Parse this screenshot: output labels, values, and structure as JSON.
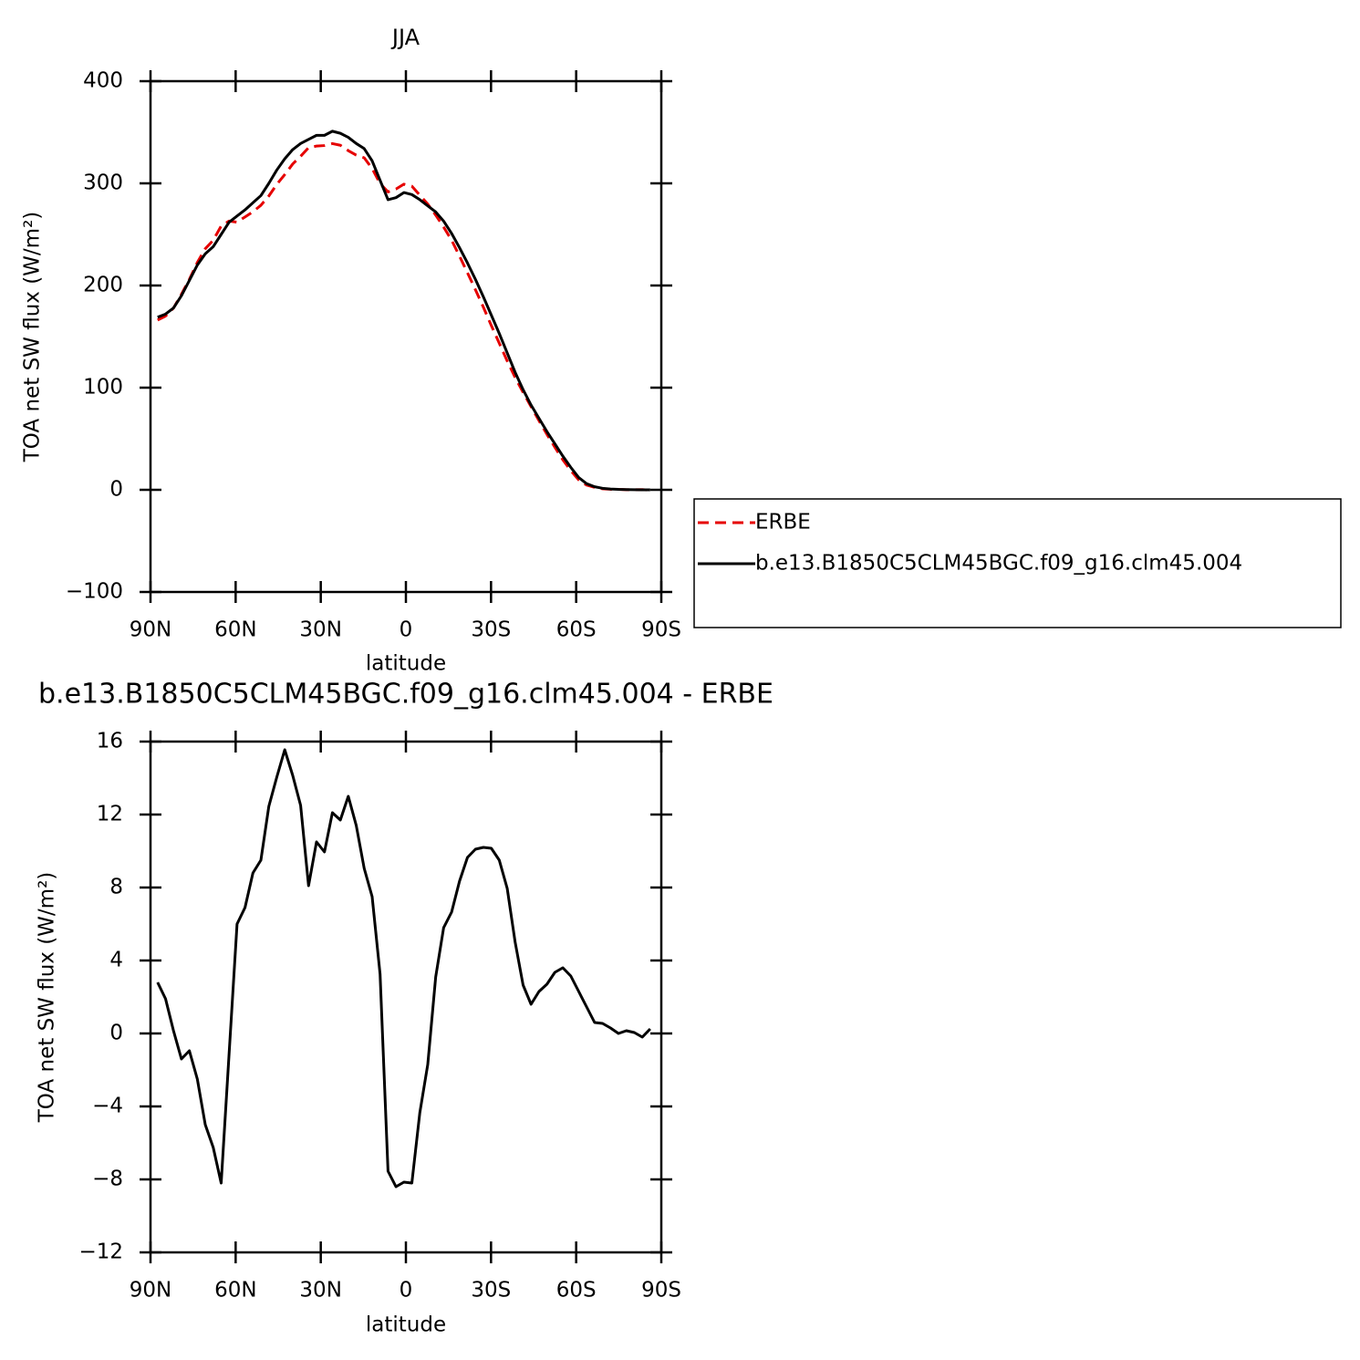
{
  "chart_data": [
    {
      "type": "line",
      "title": "JJA",
      "xlabel": "latitude",
      "ylabel": "TOA net SW flux (W/m²)",
      "x": [
        87.5,
        84.7,
        81.9,
        79.1,
        76.3,
        73.5,
        70.7,
        67.9,
        65.1,
        62.3,
        59.5,
        56.7,
        53.9,
        51.1,
        48.3,
        45.5,
        42.7,
        39.9,
        37.1,
        34.3,
        31.5,
        28.7,
        25.9,
        23.1,
        20.3,
        17.5,
        14.7,
        11.9,
        9.1,
        6.3,
        3.5,
        0.7,
        -2.1,
        -4.9,
        -7.7,
        -10.5,
        -13.3,
        -16.1,
        -18.9,
        -21.7,
        -24.5,
        -27.3,
        -30.1,
        -32.9,
        -35.7,
        -38.5,
        -41.3,
        -44.1,
        -46.9,
        -49.7,
        -52.5,
        -55.3,
        -58.1,
        -60.9,
        -63.7,
        -66.5,
        -69.3,
        -72.1,
        -74.9,
        -77.7,
        -80.5,
        -83.3,
        -86.1
      ],
      "series": [
        {
          "name": "ERBE",
          "color": "#e60000",
          "linestyle": "dashed",
          "values": [
            166.2,
            170.1,
            177.9,
            191.4,
            206,
            222.5,
            236,
            244.3,
            258.2,
            263.1,
            262,
            267.1,
            272.2,
            278.5,
            287.6,
            299,
            308.5,
            318.9,
            326.5,
            334.9,
            336.5,
            337,
            338.9,
            337.3,
            332,
            327.6,
            325,
            314.5,
            299.8,
            291.6,
            294.4,
            299.2,
            297.2,
            288.4,
            279.7,
            268.9,
            257.2,
            244.4,
            228.7,
            212.4,
            195.9,
            178.8,
            160.8,
            143.5,
            126.1,
            110,
            95.4,
            81.4,
            67.7,
            54.3,
            41.7,
            29.4,
            18.9,
            9.7,
            4.6,
            2.4,
            1,
            0.5,
            0.4,
            0.1,
            0.1,
            0.2,
            -0.3
          ]
        },
        {
          "name": "b.e13.B1850C5CLM45BGC.f09_g16.clm45.004",
          "color": "#000000",
          "linestyle": "solid",
          "values": [
            169,
            172,
            178,
            190,
            205,
            220,
            231,
            238,
            250,
            262,
            268,
            274,
            281,
            288,
            300,
            313,
            324,
            333,
            339,
            343,
            347,
            347,
            351,
            349,
            345,
            339,
            334,
            322,
            303,
            284,
            286,
            291,
            289,
            284,
            278,
            272,
            263,
            251,
            237,
            222,
            206,
            189,
            171,
            153,
            134,
            115,
            98,
            83,
            70,
            57,
            45,
            33,
            22,
            12,
            6,
            3,
            1.5,
            0.8,
            0.4,
            0.2,
            0.1,
            0,
            0
          ]
        }
      ],
      "xlim": [
        90,
        -90
      ],
      "xticks": [
        {
          "value": 90,
          "label": "90N"
        },
        {
          "value": 60,
          "label": "60N"
        },
        {
          "value": 30,
          "label": "30N"
        },
        0,
        {
          "value": -30,
          "label": "30S"
        },
        {
          "value": -60,
          "label": "60S"
        },
        {
          "value": -90,
          "label": "90S"
        }
      ],
      "ylim": [
        -100,
        400
      ],
      "yticks": [
        {
          "value": -100,
          "label": "−100"
        },
        0,
        100,
        200,
        300,
        400
      ],
      "legend": "right"
    },
    {
      "type": "line",
      "title": "b.e13.B1850C5CLM45BGC.f09_g16.clm45.004 - ERBE",
      "xlabel": "latitude",
      "ylabel": "TOA net SW flux (W/m²)",
      "x": [
        87.5,
        84.7,
        81.9,
        79.1,
        76.3,
        73.5,
        70.7,
        67.9,
        65.1,
        62.3,
        59.5,
        56.7,
        53.9,
        51.1,
        48.3,
        45.5,
        42.7,
        39.9,
        37.1,
        34.3,
        31.5,
        28.7,
        25.9,
        23.1,
        20.3,
        17.5,
        14.7,
        11.9,
        9.1,
        6.3,
        3.5,
        0.7,
        -2.1,
        -4.9,
        -7.7,
        -10.5,
        -13.3,
        -16.1,
        -18.9,
        -21.7,
        -24.5,
        -27.3,
        -30.1,
        -32.9,
        -35.7,
        -38.5,
        -41.3,
        -44.1,
        -46.9,
        -49.7,
        -52.5,
        -55.3,
        -58.1,
        -60.9,
        -63.7,
        -66.5,
        -69.3,
        -72.1,
        -74.9,
        -77.7,
        -80.5,
        -83.3,
        -86.1
      ],
      "color": "#000000",
      "values": [
        2.8,
        1.9,
        0.15,
        -1.4,
        -0.95,
        -2.5,
        -5,
        -6.25,
        -8.2,
        -1.1,
        6,
        6.9,
        8.8,
        9.5,
        12.45,
        14.05,
        15.55,
        14.15,
        12.5,
        8.1,
        10.5,
        9.95,
        12.1,
        11.7,
        13,
        11.4,
        9.05,
        7.5,
        3.25,
        -7.55,
        -8.4,
        -8.15,
        -8.2,
        -4.35,
        -1.7,
        3.1,
        5.8,
        6.65,
        8.35,
        9.65,
        10.1,
        10.2,
        10.15,
        9.5,
        7.95,
        5,
        2.65,
        1.6,
        2.3,
        2.7,
        3.35,
        3.6,
        3.15,
        2.3,
        1.45,
        0.6,
        0.55,
        0.3,
        0,
        0.15,
        0.05,
        -0.2,
        0.25
      ],
      "xlim": [
        90,
        -90
      ],
      "xticks": [
        {
          "value": 90,
          "label": "90N"
        },
        {
          "value": 60,
          "label": "60N"
        },
        {
          "value": 30,
          "label": "30N"
        },
        0,
        {
          "value": -30,
          "label": "30S"
        },
        {
          "value": -60,
          "label": "60S"
        },
        {
          "value": -90,
          "label": "90S"
        }
      ],
      "ylim": [
        -12,
        16
      ],
      "yticks": [
        {
          "value": -12,
          "label": "−12"
        },
        {
          "value": -8,
          "label": "−8"
        },
        {
          "value": -4,
          "label": "−4"
        },
        0,
        4,
        8,
        12,
        16
      ]
    }
  ]
}
